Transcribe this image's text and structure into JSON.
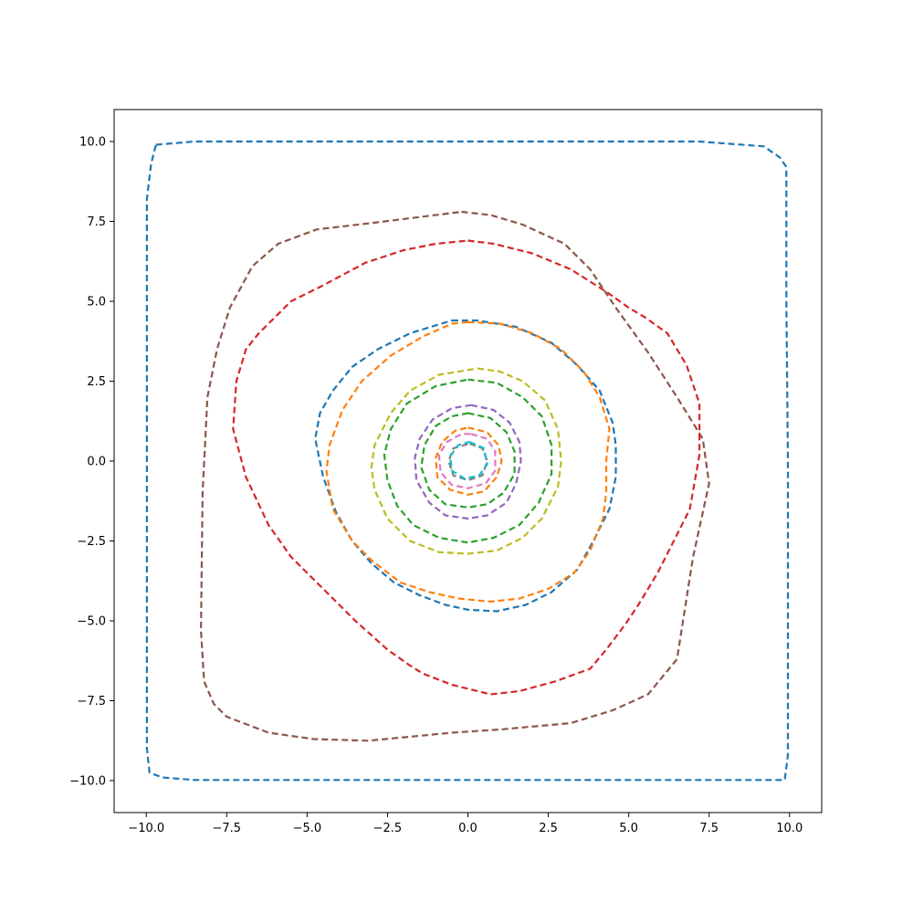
{
  "chart_data": {
    "type": "line",
    "title": "",
    "xlabel": "",
    "ylabel": "",
    "xlim": [
      -11,
      11
    ],
    "ylim": [
      -11,
      11
    ],
    "grid": false,
    "legend": "none",
    "line_style": "dashed",
    "x_ticks": [
      {
        "value": -10,
        "label": "−10.0"
      },
      {
        "value": -7.5,
        "label": "−7.5"
      },
      {
        "value": -5,
        "label": "−5.0"
      },
      {
        "value": -2.5,
        "label": "−2.5"
      },
      {
        "value": 0,
        "label": "0.0"
      },
      {
        "value": 2.5,
        "label": "2.5"
      },
      {
        "value": 5,
        "label": "5.0"
      },
      {
        "value": 7.5,
        "label": "7.5"
      },
      {
        "value": 10,
        "label": "10.0"
      }
    ],
    "y_ticks": [
      {
        "value": 10,
        "label": "10.0"
      },
      {
        "value": 7.5,
        "label": "7.5"
      },
      {
        "value": 5,
        "label": "5.0"
      },
      {
        "value": 2.5,
        "label": "2.5"
      },
      {
        "value": 0,
        "label": "0.0"
      },
      {
        "value": -2.5,
        "label": "−2.5"
      },
      {
        "value": -5,
        "label": "−5.0"
      },
      {
        "value": -7.5,
        "label": "−7.5"
      },
      {
        "value": -10,
        "label": "−10.0"
      }
    ],
    "series": [
      {
        "color": "#1f77b4",
        "points": [
          [
            -9.7,
            9.9
          ],
          [
            -8.5,
            10.0
          ],
          [
            -5,
            10.0
          ],
          [
            0,
            10.0
          ],
          [
            5,
            10.0
          ],
          [
            7.2,
            10.0
          ],
          [
            9.2,
            9.85
          ],
          [
            9.7,
            9.5
          ],
          [
            9.9,
            9.2
          ],
          [
            9.9,
            5
          ],
          [
            9.95,
            0
          ],
          [
            9.95,
            -5
          ],
          [
            9.95,
            -9.2
          ],
          [
            9.85,
            -9.98
          ],
          [
            5,
            -9.98
          ],
          [
            0,
            -9.98
          ],
          [
            -5,
            -9.98
          ],
          [
            -8.5,
            -9.98
          ],
          [
            -9.5,
            -9.9
          ],
          [
            -9.9,
            -9.75
          ],
          [
            -9.98,
            -9
          ],
          [
            -9.98,
            -5
          ],
          [
            -9.98,
            0
          ],
          [
            -9.98,
            5
          ],
          [
            -9.98,
            8.2
          ],
          [
            -9.85,
            9.3
          ],
          [
            -9.7,
            9.9
          ]
        ]
      },
      {
        "color": "#8c564b",
        "points": [
          [
            -0.2,
            7.8
          ],
          [
            0.7,
            7.7
          ],
          [
            1.7,
            7.4
          ],
          [
            3.0,
            6.8
          ],
          [
            3.8,
            6.0
          ],
          [
            4.6,
            4.8
          ],
          [
            5.6,
            3.4
          ],
          [
            6.5,
            2.0
          ],
          [
            7.3,
            0.7
          ],
          [
            7.5,
            -0.7
          ],
          [
            7.0,
            -3.0
          ],
          [
            6.5,
            -6.2
          ],
          [
            5.6,
            -7.3
          ],
          [
            4.5,
            -7.8
          ],
          [
            3.2,
            -8.2
          ],
          [
            1.0,
            -8.4
          ],
          [
            -0.5,
            -8.5
          ],
          [
            -3.1,
            -8.75
          ],
          [
            -4.8,
            -8.7
          ],
          [
            -6.2,
            -8.5
          ],
          [
            -7.5,
            -8.0
          ],
          [
            -7.9,
            -7.6
          ],
          [
            -8.2,
            -6.9
          ],
          [
            -8.3,
            -5.3
          ],
          [
            -8.25,
            -1.0
          ],
          [
            -8.1,
            2.0
          ],
          [
            -7.8,
            3.5
          ],
          [
            -7.4,
            4.8
          ],
          [
            -6.7,
            6.1
          ],
          [
            -5.9,
            6.8
          ],
          [
            -4.7,
            7.25
          ],
          [
            -3.0,
            7.45
          ],
          [
            -0.2,
            7.8
          ]
        ]
      },
      {
        "color": "#d62728",
        "points": [
          [
            0,
            6.9
          ],
          [
            0.8,
            6.8
          ],
          [
            2.0,
            6.5
          ],
          [
            3.2,
            6.0
          ],
          [
            4.3,
            5.3
          ],
          [
            5.0,
            4.8
          ],
          [
            5.5,
            4.5
          ],
          [
            6.2,
            4.0
          ],
          [
            6.8,
            3.0
          ],
          [
            7.2,
            1.8
          ],
          [
            7.2,
            0.2
          ],
          [
            6.9,
            -1.5
          ],
          [
            6.4,
            -2.5
          ],
          [
            5.9,
            -3.5
          ],
          [
            5.3,
            -4.5
          ],
          [
            4.9,
            -5.1
          ],
          [
            4.3,
            -5.9
          ],
          [
            3.8,
            -6.5
          ],
          [
            2.7,
            -6.9
          ],
          [
            1.6,
            -7.2
          ],
          [
            0.7,
            -7.3
          ],
          [
            -0.5,
            -7.0
          ],
          [
            -1.4,
            -6.65
          ],
          [
            -1.8,
            -6.4
          ],
          [
            -2.5,
            -5.9
          ],
          [
            -3.5,
            -5.0
          ],
          [
            -4.5,
            -4.0
          ],
          [
            -5.5,
            -3.0
          ],
          [
            -6.2,
            -2.0
          ],
          [
            -6.9,
            -0.5
          ],
          [
            -7.3,
            1.0
          ],
          [
            -7.2,
            2.5
          ],
          [
            -6.9,
            3.5
          ],
          [
            -6.5,
            4.0
          ],
          [
            -5.5,
            5.0
          ],
          [
            -4.5,
            5.5
          ],
          [
            -3.2,
            6.2
          ],
          [
            -2.0,
            6.6
          ],
          [
            -1.0,
            6.8
          ],
          [
            0,
            6.9
          ]
        ]
      },
      {
        "color": "#1f77b4",
        "points": [
          [
            -0.5,
            4.4
          ],
          [
            0.3,
            4.4
          ],
          [
            1.5,
            4.2
          ],
          [
            2.6,
            3.7
          ],
          [
            3.4,
            3.0
          ],
          [
            4.1,
            2.2
          ],
          [
            4.5,
            1.2
          ],
          [
            4.6,
            0.5
          ],
          [
            4.6,
            -0.5
          ],
          [
            4.4,
            -1.5
          ],
          [
            3.9,
            -2.5
          ],
          [
            3.4,
            -3.4
          ],
          [
            2.6,
            -4.1
          ],
          [
            1.8,
            -4.5
          ],
          [
            0.9,
            -4.7
          ],
          [
            0,
            -4.65
          ],
          [
            -0.7,
            -4.5
          ],
          [
            -1.5,
            -4.2
          ],
          [
            -2.3,
            -3.8
          ],
          [
            -3.0,
            -3.2
          ],
          [
            -3.6,
            -2.5
          ],
          [
            -4.1,
            -1.6
          ],
          [
            -4.5,
            -0.5
          ],
          [
            -4.75,
            0.7
          ],
          [
            -4.6,
            1.5
          ],
          [
            -4.2,
            2.2
          ],
          [
            -3.6,
            2.95
          ],
          [
            -2.8,
            3.5
          ],
          [
            -1.8,
            4.0
          ],
          [
            -0.5,
            4.4
          ]
        ]
      },
      {
        "color": "#ff7f0e",
        "points": [
          [
            0,
            4.35
          ],
          [
            1.0,
            4.3
          ],
          [
            2.0,
            4.0
          ],
          [
            2.9,
            3.5
          ],
          [
            3.6,
            2.8
          ],
          [
            4.1,
            2.0
          ],
          [
            4.4,
            1.0
          ],
          [
            4.3,
            0
          ],
          [
            4.3,
            -1.0
          ],
          [
            4.2,
            -1.8
          ],
          [
            3.8,
            -2.8
          ],
          [
            3.3,
            -3.5
          ],
          [
            2.5,
            -4.0
          ],
          [
            1.6,
            -4.3
          ],
          [
            0.7,
            -4.4
          ],
          [
            -0.3,
            -4.3
          ],
          [
            -1.2,
            -4.1
          ],
          [
            -2.1,
            -3.8
          ],
          [
            -3.0,
            -3.1
          ],
          [
            -3.6,
            -2.5
          ],
          [
            -4.2,
            -1.5
          ],
          [
            -4.4,
            -0.3
          ],
          [
            -4.3,
            0.5
          ],
          [
            -3.9,
            1.6
          ],
          [
            -3.3,
            2.5
          ],
          [
            -2.4,
            3.3
          ],
          [
            -1.4,
            3.9
          ],
          [
            -0.5,
            4.3
          ],
          [
            0,
            4.35
          ]
        ]
      },
      {
        "color": "#bcbd22",
        "points": [
          [
            0.3,
            2.9
          ],
          [
            1.0,
            2.8
          ],
          [
            1.7,
            2.5
          ],
          [
            2.4,
            1.9
          ],
          [
            2.8,
            1.0
          ],
          [
            2.9,
            0
          ],
          [
            2.8,
            -0.8
          ],
          [
            2.3,
            -1.8
          ],
          [
            1.7,
            -2.4
          ],
          [
            0.9,
            -2.8
          ],
          [
            0,
            -2.9
          ],
          [
            -0.9,
            -2.85
          ],
          [
            -1.8,
            -2.5
          ],
          [
            -2.5,
            -1.8
          ],
          [
            -2.9,
            -0.9
          ],
          [
            -3.0,
            -0.2
          ],
          [
            -2.9,
            0.5
          ],
          [
            -2.4,
            1.5
          ],
          [
            -1.8,
            2.2
          ],
          [
            -0.9,
            2.7
          ],
          [
            0.3,
            2.9
          ]
        ]
      },
      {
        "color": "#2ca02c",
        "points": [
          [
            0,
            2.55
          ],
          [
            0.9,
            2.45
          ],
          [
            1.7,
            2.0
          ],
          [
            2.3,
            1.4
          ],
          [
            2.6,
            0.5
          ],
          [
            2.6,
            -0.4
          ],
          [
            2.2,
            -1.3
          ],
          [
            1.6,
            -2.0
          ],
          [
            0.8,
            -2.4
          ],
          [
            0,
            -2.55
          ],
          [
            -0.9,
            -2.4
          ],
          [
            -1.7,
            -2.0
          ],
          [
            -2.2,
            -1.4
          ],
          [
            -2.5,
            -0.6
          ],
          [
            -2.6,
            0.2
          ],
          [
            -2.4,
            1.0
          ],
          [
            -1.9,
            1.8
          ],
          [
            -1.0,
            2.35
          ],
          [
            0,
            2.55
          ]
        ]
      },
      {
        "color": "#9467bd",
        "points": [
          [
            0.1,
            1.75
          ],
          [
            0.8,
            1.6
          ],
          [
            1.3,
            1.2
          ],
          [
            1.6,
            0.6
          ],
          [
            1.65,
            0
          ],
          [
            1.5,
            -0.7
          ],
          [
            1.2,
            -1.3
          ],
          [
            0.6,
            -1.7
          ],
          [
            0,
            -1.8
          ],
          [
            -0.7,
            -1.7
          ],
          [
            -1.2,
            -1.3
          ],
          [
            -1.6,
            -0.6
          ],
          [
            -1.65,
            0.1
          ],
          [
            -1.5,
            0.7
          ],
          [
            -1.1,
            1.3
          ],
          [
            -0.5,
            1.65
          ],
          [
            0.1,
            1.75
          ]
        ]
      },
      {
        "color": "#2ca02c",
        "points": [
          [
            0,
            1.5
          ],
          [
            0.7,
            1.35
          ],
          [
            1.2,
            0.9
          ],
          [
            1.45,
            0.3
          ],
          [
            1.45,
            -0.4
          ],
          [
            1.1,
            -1.0
          ],
          [
            0.6,
            -1.35
          ],
          [
            0,
            -1.45
          ],
          [
            -0.7,
            -1.35
          ],
          [
            -1.2,
            -0.9
          ],
          [
            -1.45,
            -0.2
          ],
          [
            -1.35,
            0.5
          ],
          [
            -1.0,
            1.1
          ],
          [
            -0.5,
            1.4
          ],
          [
            0,
            1.5
          ]
        ]
      },
      {
        "color": "#ff7f0e",
        "points": [
          [
            0,
            1.05
          ],
          [
            0.6,
            0.9
          ],
          [
            0.95,
            0.5
          ],
          [
            1.05,
            0
          ],
          [
            0.9,
            -0.5
          ],
          [
            0.5,
            -0.95
          ],
          [
            0,
            -1.05
          ],
          [
            -0.55,
            -0.9
          ],
          [
            -0.95,
            -0.5
          ],
          [
            -1.0,
            0.1
          ],
          [
            -0.8,
            0.6
          ],
          [
            -0.4,
            0.95
          ],
          [
            0,
            1.05
          ]
        ]
      },
      {
        "color": "#e377c2",
        "points": [
          [
            0.1,
            0.85
          ],
          [
            0.6,
            0.7
          ],
          [
            0.85,
            0.3
          ],
          [
            0.85,
            -0.3
          ],
          [
            0.55,
            -0.7
          ],
          [
            0,
            -0.85
          ],
          [
            -0.5,
            -0.75
          ],
          [
            -0.85,
            -0.35
          ],
          [
            -0.9,
            0.2
          ],
          [
            -0.65,
            0.6
          ],
          [
            -0.2,
            0.85
          ],
          [
            0.1,
            0.85
          ]
        ]
      },
      {
        "color": "#7f7f7f",
        "points": [
          [
            0.05,
            0.55
          ],
          [
            0.45,
            0.4
          ],
          [
            0.6,
            0
          ],
          [
            0.45,
            -0.45
          ],
          [
            0,
            -0.6
          ],
          [
            -0.45,
            -0.45
          ],
          [
            -0.6,
            0
          ],
          [
            -0.45,
            0.4
          ],
          [
            0.05,
            0.55
          ]
        ]
      },
      {
        "color": "#17becf",
        "points": [
          [
            0.05,
            0.6
          ],
          [
            0.5,
            0.4
          ],
          [
            0.6,
            -0.1
          ],
          [
            0.35,
            -0.45
          ],
          [
            -0.1,
            -0.55
          ],
          [
            -0.5,
            -0.3
          ],
          [
            -0.55,
            0.15
          ],
          [
            -0.3,
            0.5
          ],
          [
            0.05,
            0.6
          ]
        ]
      }
    ]
  }
}
